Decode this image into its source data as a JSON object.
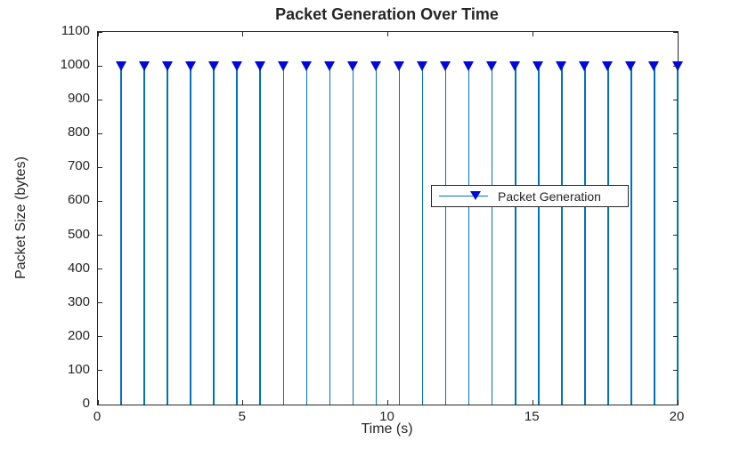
{
  "chart_data": {
    "type": "stem",
    "title": "Packet Generation Over Time",
    "xlabel": "Time (s)",
    "ylabel": "Packet Size (bytes)",
    "x": [
      0.8,
      1.6,
      2.4,
      3.2,
      4.0,
      4.8,
      5.6,
      6.4,
      7.2,
      8.0,
      8.8,
      9.6,
      10.4,
      11.2,
      12.0,
      12.8,
      13.6,
      14.4,
      15.2,
      16.0,
      16.8,
      17.6,
      18.4,
      19.2,
      20.0
    ],
    "y": [
      1000,
      1000,
      1000,
      1000,
      1000,
      1000,
      1000,
      1000,
      1000,
      1000,
      1000,
      1000,
      1000,
      1000,
      1000,
      1000,
      1000,
      1000,
      1000,
      1000,
      1000,
      1000,
      1000,
      1000,
      1000
    ],
    "xlim": [
      0,
      20
    ],
    "ylim": [
      0,
      1100
    ],
    "xticks": [
      0,
      5,
      10,
      15,
      20
    ],
    "yticks": [
      0,
      100,
      200,
      300,
      400,
      500,
      600,
      700,
      800,
      900,
      1000,
      1100
    ],
    "grid": false,
    "legend": {
      "label": "Packet Generation",
      "position": "east"
    },
    "colors": {
      "stem_line": "#0072BD",
      "marker_fill": "#0009D9",
      "axis": "#262626",
      "text": "#262626",
      "background": "#ffffff"
    }
  }
}
